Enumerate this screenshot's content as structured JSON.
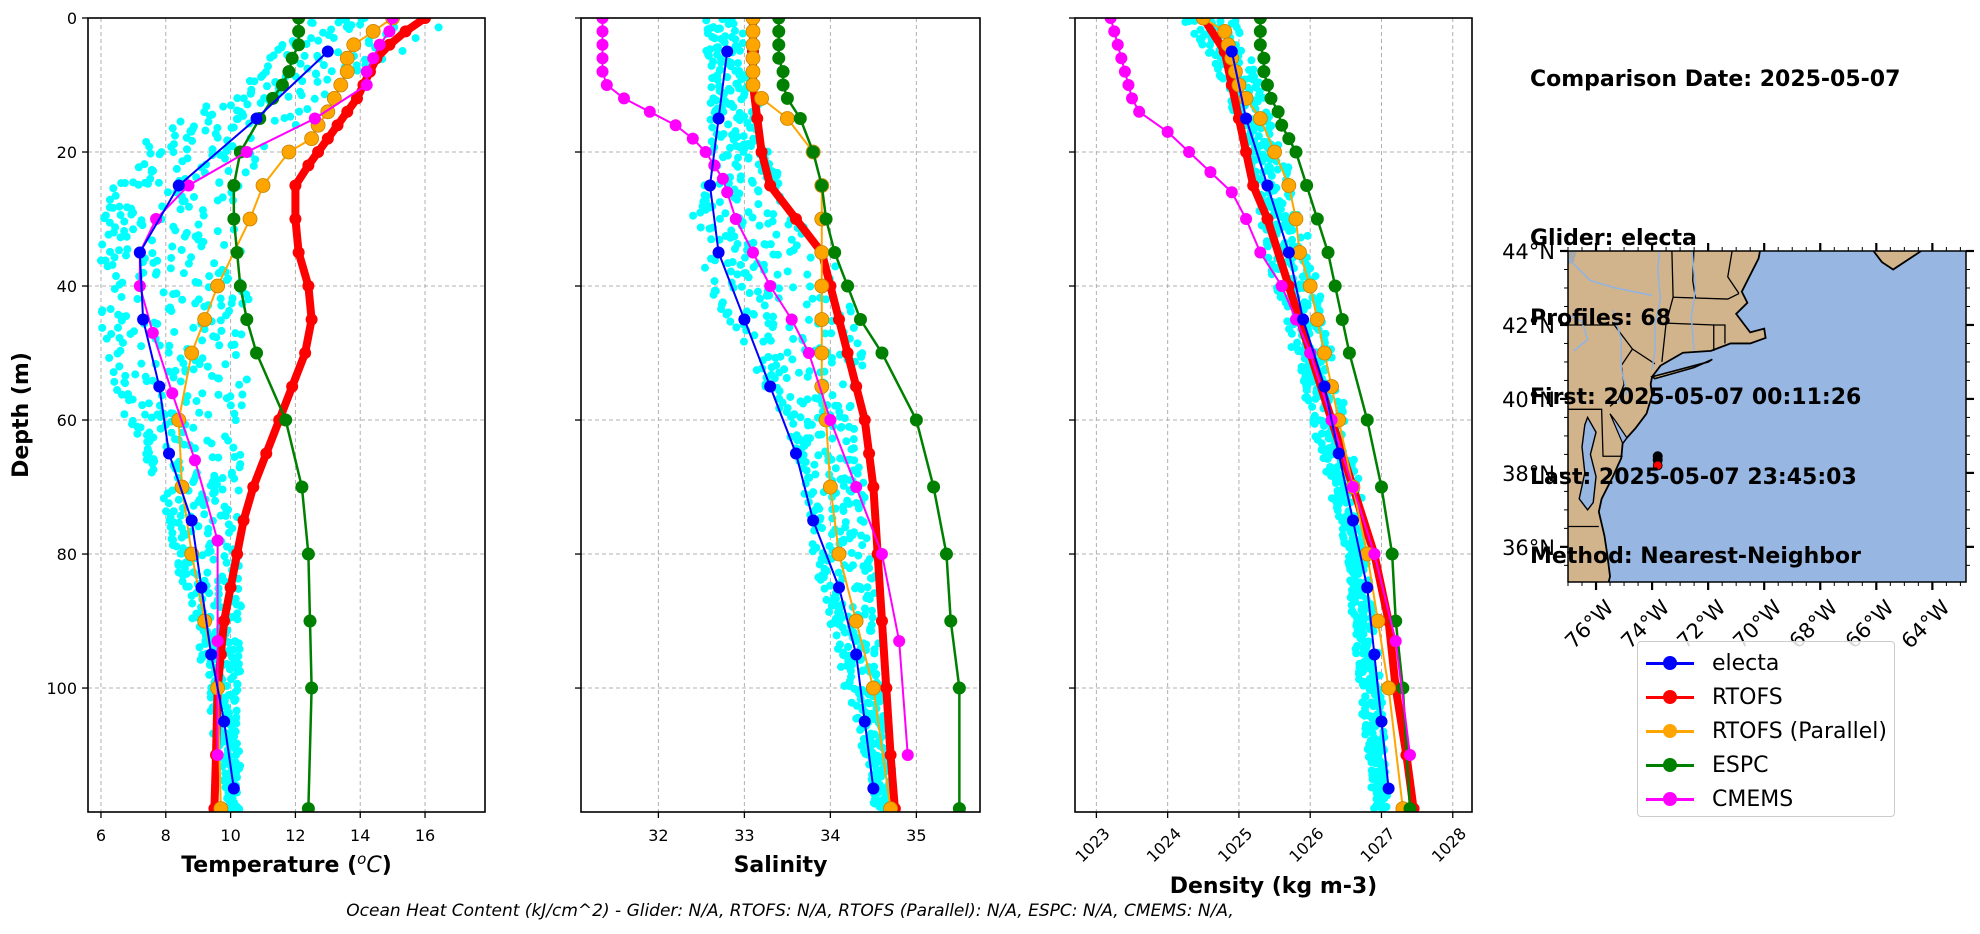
{
  "info": {
    "comparison_date": "Comparison Date: 2025-05-07",
    "glider": "Glider: electa",
    "profiles": "Profiles: 68",
    "first": "First: 2025-05-07 00:11:26",
    "last": "Last: 2025-05-07 23:45:03",
    "method": "Method: Nearest-Neighbor"
  },
  "footer": "Ocean Heat Content (kJ/cm^2) - Glider: N/A,  RTOFS: N/A,  RTOFS (Parallel): N/A,  ESPC: N/A,  CMEMS: N/A,",
  "legend": [
    {
      "label": "electa",
      "color": "#0000ff"
    },
    {
      "label": "RTOFS",
      "color": "#ff0000"
    },
    {
      "label": "RTOFS (Parallel)",
      "color": "#ffa500"
    },
    {
      "label": "ESPC",
      "color": "#008000"
    },
    {
      "label": "CMEMS",
      "color": "#ff00ff"
    }
  ],
  "colors": {
    "glider_raw": "#00ffff",
    "electa": "#0000ff",
    "rtofs": "#ff0000",
    "rtofs_parallel": "#ffa500",
    "espc": "#008000",
    "cmems": "#ff00ff",
    "land": "#d2b48c",
    "ocean": "#97b6e1",
    "lakes": "#a9a9a9"
  },
  "chart_data": [
    {
      "type": "line",
      "title": "",
      "xlabel": "Temperature (°C)",
      "ylabel": "Depth (m)",
      "xlim": [
        5.6,
        17.85
      ],
      "ylim": [
        118.5,
        0
      ],
      "xticks": [
        6,
        8,
        10,
        12,
        14,
        16
      ],
      "yticks": [
        0,
        20,
        40,
        60,
        80,
        100
      ],
      "grid": true,
      "glider_cloud": {
        "name": "glider raw",
        "left_edge": [
          [
            0,
            12.5
          ],
          [
            10,
            10.5
          ],
          [
            20,
            7
          ],
          [
            30,
            6
          ],
          [
            40,
            5.9
          ],
          [
            50,
            6.1
          ],
          [
            60,
            6.8
          ],
          [
            70,
            7.8
          ],
          [
            80,
            8.3
          ],
          [
            90,
            8.8
          ],
          [
            100,
            9.3
          ],
          [
            118,
            9.9
          ]
        ],
        "right_edge": [
          [
            0,
            17.6
          ],
          [
            5,
            15.2
          ],
          [
            10,
            13.5
          ],
          [
            20,
            11
          ],
          [
            30,
            10.2
          ],
          [
            40,
            10.6
          ],
          [
            50,
            10.6
          ],
          [
            60,
            10.4
          ],
          [
            70,
            10.3
          ],
          [
            80,
            10.3
          ],
          [
            90,
            10.3
          ],
          [
            100,
            10.3
          ],
          [
            118,
            10.3
          ]
        ]
      },
      "series": [
        {
          "name": "electa",
          "depth": [
            5,
            15,
            25,
            35,
            45,
            55,
            65,
            75,
            85,
            95,
            105,
            115
          ],
          "values": [
            13,
            10.8,
            8.4,
            7.2,
            7.3,
            7.8,
            8.1,
            8.8,
            9.1,
            9.4,
            9.8,
            10.1
          ]
        },
        {
          "name": "RTOFS",
          "depth": [
            0,
            2,
            4,
            6,
            8,
            10,
            12,
            14,
            16,
            18,
            20,
            22,
            25,
            30,
            35,
            40,
            45,
            50,
            55,
            60,
            65,
            70,
            75,
            80,
            85,
            90,
            95,
            100,
            110,
            118
          ],
          "values": [
            16,
            15.4,
            14.9,
            14.5,
            14.3,
            14.1,
            13.9,
            13.6,
            13.3,
            13.0,
            12.7,
            12.4,
            12.0,
            12.0,
            12.1,
            12.4,
            12.5,
            12.3,
            11.9,
            11.5,
            11.1,
            10.7,
            10.4,
            10.2,
            10.0,
            9.8,
            9.7,
            9.6,
            9.55,
            9.5
          ]
        },
        {
          "name": "RTOFS (Parallel)",
          "depth": [
            0,
            2,
            4,
            6,
            8,
            10,
            12,
            14,
            16,
            18,
            20,
            25,
            30,
            40,
            45,
            50,
            60,
            70,
            80,
            90,
            100,
            118
          ],
          "values": [
            15,
            14.4,
            13.8,
            13.6,
            13.6,
            13.4,
            13.2,
            13.0,
            12.7,
            12.5,
            11.8,
            11.0,
            10.6,
            9.6,
            9.2,
            8.8,
            8.4,
            8.5,
            8.8,
            9.2,
            9.6,
            9.7
          ]
        },
        {
          "name": "ESPC",
          "depth": [
            0,
            2,
            4,
            6,
            8,
            10,
            12,
            15,
            20,
            25,
            30,
            35,
            40,
            45,
            50,
            60,
            70,
            80,
            90,
            100,
            118
          ],
          "values": [
            12.1,
            12.1,
            12.1,
            11.9,
            11.8,
            11.6,
            11.3,
            10.9,
            10.3,
            10.1,
            10.1,
            10.2,
            10.3,
            10.5,
            10.8,
            11.7,
            12.2,
            12.4,
            12.45,
            12.5,
            12.4
          ]
        },
        {
          "name": "CMEMS",
          "depth": [
            0,
            2,
            4,
            6,
            8,
            10,
            15,
            20,
            25,
            30,
            35,
            40,
            47,
            56,
            66,
            78,
            93,
            110
          ],
          "values": [
            15,
            14.9,
            14.6,
            14.4,
            14.2,
            14.2,
            12.6,
            10.5,
            8.7,
            7.7,
            7.2,
            7.2,
            7.6,
            8.2,
            8.9,
            9.6,
            9.6,
            9.6
          ]
        }
      ]
    },
    {
      "type": "line",
      "title": "",
      "xlabel": "Salinity",
      "ylabel": "",
      "xlim": [
        31.1,
        35.74
      ],
      "ylim": [
        118.5,
        0
      ],
      "xticks": [
        32,
        33,
        34,
        35
      ],
      "grid": true,
      "glider_cloud": {
        "left_edge": [
          [
            0,
            32.5
          ],
          [
            10,
            32.6
          ],
          [
            20,
            32.6
          ],
          [
            30,
            32.4
          ],
          [
            40,
            32.6
          ],
          [
            50,
            33.0
          ],
          [
            60,
            33.5
          ],
          [
            70,
            33.7
          ],
          [
            80,
            33.8
          ],
          [
            90,
            34.0
          ],
          [
            100,
            34.2
          ],
          [
            110,
            34.4
          ],
          [
            115,
            34.5
          ]
        ],
        "right_edge": [
          [
            0,
            33.0
          ],
          [
            10,
            33.1
          ],
          [
            20,
            33.3
          ],
          [
            30,
            33.6
          ],
          [
            40,
            34.2
          ],
          [
            50,
            34.4
          ],
          [
            60,
            34.3
          ],
          [
            70,
            34.4
          ],
          [
            80,
            34.5
          ],
          [
            90,
            34.55
          ],
          [
            100,
            34.6
          ],
          [
            110,
            34.7
          ],
          [
            118,
            34.75
          ]
        ]
      },
      "series": [
        {
          "name": "electa",
          "depth": [
            5,
            15,
            25,
            35,
            45,
            55,
            65,
            75,
            85,
            95,
            105,
            115
          ],
          "values": [
            32.8,
            32.7,
            32.6,
            32.7,
            33.0,
            33.3,
            33.6,
            33.8,
            34.1,
            34.3,
            34.4,
            34.5
          ]
        },
        {
          "name": "RTOFS",
          "depth": [
            0,
            5,
            10,
            15,
            20,
            25,
            30,
            35,
            40,
            45,
            50,
            55,
            60,
            65,
            70,
            80,
            90,
            100,
            110,
            118
          ],
          "values": [
            33.1,
            33.1,
            33.1,
            33.15,
            33.2,
            33.3,
            33.6,
            33.9,
            34.0,
            34.1,
            34.2,
            34.3,
            34.4,
            34.45,
            34.5,
            34.55,
            34.6,
            34.65,
            34.7,
            34.75
          ]
        },
        {
          "name": "RTOFS (Parallel)",
          "depth": [
            0,
            2,
            4,
            6,
            8,
            10,
            12,
            15,
            20,
            25,
            30,
            35,
            40,
            45,
            50,
            55,
            60,
            70,
            80,
            90,
            100,
            118
          ],
          "values": [
            33.1,
            33.1,
            33.1,
            33.1,
            33.1,
            33.1,
            33.2,
            33.5,
            33.8,
            33.9,
            33.9,
            33.9,
            33.9,
            33.9,
            33.9,
            33.9,
            33.95,
            34.0,
            34.1,
            34.3,
            34.5,
            34.7
          ]
        },
        {
          "name": "ESPC",
          "depth": [
            0,
            2,
            4,
            6,
            8,
            10,
            12,
            15,
            20,
            25,
            30,
            35,
            40,
            45,
            50,
            60,
            70,
            80,
            90,
            100,
            118
          ],
          "values": [
            33.4,
            33.4,
            33.4,
            33.4,
            33.45,
            33.45,
            33.5,
            33.65,
            33.8,
            33.9,
            33.95,
            34.05,
            34.2,
            34.35,
            34.6,
            35.0,
            35.2,
            35.35,
            35.4,
            35.5,
            35.5
          ]
        },
        {
          "name": "CMEMS",
          "depth": [
            0,
            2,
            4,
            6,
            8,
            10,
            12,
            14,
            16,
            18,
            20,
            22,
            24,
            26,
            30,
            35,
            40,
            45,
            50,
            60,
            70,
            80,
            93,
            110
          ],
          "values": [
            31.35,
            31.35,
            31.35,
            31.35,
            31.35,
            31.4,
            31.6,
            31.9,
            32.2,
            32.4,
            32.55,
            32.65,
            32.75,
            32.8,
            32.9,
            33.1,
            33.3,
            33.55,
            33.75,
            34.0,
            34.3,
            34.6,
            34.8,
            34.9
          ]
        }
      ]
    },
    {
      "type": "line",
      "title": "",
      "xlabel": "Density (kg m-3)",
      "ylabel": "",
      "xlim": [
        1022.7,
        1028.27
      ],
      "ylim": [
        118.5,
        0
      ],
      "xticks": [
        1023,
        1024,
        1025,
        1026,
        1027,
        1028
      ],
      "grid": true,
      "glider_cloud": {
        "left_edge": [
          [
            0,
            1024.2
          ],
          [
            10,
            1024.8
          ],
          [
            20,
            1025.1
          ],
          [
            30,
            1025.3
          ],
          [
            40,
            1025.5
          ],
          [
            50,
            1025.8
          ],
          [
            60,
            1026.0
          ],
          [
            70,
            1026.3
          ],
          [
            80,
            1026.5
          ],
          [
            90,
            1026.6
          ],
          [
            100,
            1026.7
          ],
          [
            118,
            1026.9
          ]
        ],
        "right_edge": [
          [
            0,
            1025.0
          ],
          [
            10,
            1025.3
          ],
          [
            20,
            1025.6
          ],
          [
            30,
            1025.9
          ],
          [
            40,
            1026.1
          ],
          [
            50,
            1026.3
          ],
          [
            60,
            1026.5
          ],
          [
            70,
            1026.7
          ],
          [
            80,
            1026.8
          ],
          [
            90,
            1026.9
          ],
          [
            100,
            1027.0
          ],
          [
            118,
            1027.1
          ]
        ]
      },
      "series": [
        {
          "name": "electa",
          "depth": [
            5,
            15,
            25,
            35,
            45,
            55,
            65,
            75,
            85,
            95,
            105,
            115
          ],
          "values": [
            1024.9,
            1025.1,
            1025.4,
            1025.7,
            1025.9,
            1026.2,
            1026.4,
            1026.6,
            1026.8,
            1026.9,
            1027.0,
            1027.1
          ]
        },
        {
          "name": "RTOFS",
          "depth": [
            0,
            5,
            10,
            15,
            20,
            25,
            30,
            40,
            50,
            60,
            70,
            80,
            90,
            100,
            110,
            118
          ],
          "values": [
            1024.5,
            1024.8,
            1024.9,
            1025.0,
            1025.1,
            1025.2,
            1025.4,
            1025.7,
            1026.0,
            1026.3,
            1026.6,
            1026.9,
            1027.1,
            1027.2,
            1027.35,
            1027.45
          ]
        },
        {
          "name": "RTOFS (Parallel)",
          "depth": [
            0,
            2,
            4,
            6,
            8,
            10,
            12,
            15,
            20,
            25,
            30,
            35,
            40,
            45,
            50,
            55,
            60,
            70,
            80,
            90,
            100,
            118
          ],
          "values": [
            1024.5,
            1024.8,
            1024.85,
            1024.9,
            1024.95,
            1025.0,
            1025.1,
            1025.3,
            1025.5,
            1025.7,
            1025.8,
            1025.85,
            1026.0,
            1026.1,
            1026.2,
            1026.3,
            1026.4,
            1026.6,
            1026.8,
            1026.95,
            1027.1,
            1027.3
          ]
        },
        {
          "name": "ESPC",
          "depth": [
            0,
            2,
            4,
            6,
            8,
            10,
            12,
            14,
            16,
            18,
            20,
            25,
            30,
            35,
            40,
            45,
            50,
            60,
            70,
            80,
            90,
            100,
            118
          ],
          "values": [
            1025.3,
            1025.3,
            1025.3,
            1025.35,
            1025.35,
            1025.4,
            1025.45,
            1025.55,
            1025.6,
            1025.7,
            1025.8,
            1025.95,
            1026.1,
            1026.25,
            1026.35,
            1026.45,
            1026.55,
            1026.8,
            1027.0,
            1027.15,
            1027.2,
            1027.3,
            1027.4
          ]
        },
        {
          "name": "CMEMS",
          "depth": [
            0,
            2,
            4,
            6,
            8,
            10,
            12,
            14,
            17,
            20,
            23,
            26,
            30,
            35,
            40,
            45,
            50,
            60,
            70,
            80,
            93,
            110
          ],
          "values": [
            1023.2,
            1023.25,
            1023.3,
            1023.35,
            1023.4,
            1023.45,
            1023.5,
            1023.6,
            1024.0,
            1024.3,
            1024.6,
            1024.9,
            1025.1,
            1025.3,
            1025.6,
            1025.8,
            1026.0,
            1026.3,
            1026.6,
            1026.9,
            1027.2,
            1027.4
          ]
        }
      ]
    },
    {
      "type": "map",
      "title": "",
      "lon_range": [
        -77.0,
        -62.8
      ],
      "lat_range": [
        35.05,
        44.0
      ],
      "xtick_labels": [
        "76°W",
        "74°W",
        "72°W",
        "70°W",
        "68°W",
        "66°W",
        "64°W"
      ],
      "xticks": [
        -76,
        -74,
        -72,
        -70,
        -68,
        -66,
        -64
      ],
      "ytick_labels": [
        "36°N",
        "38°N",
        "40°N",
        "42°N",
        "44°N"
      ],
      "yticks": [
        36,
        38,
        40,
        42,
        44
      ],
      "glider_track": [
        [
          -73.8,
          38.45
        ],
        [
          -73.8,
          38.35
        ]
      ],
      "glider_position": [
        -73.8,
        38.2
      ]
    }
  ]
}
